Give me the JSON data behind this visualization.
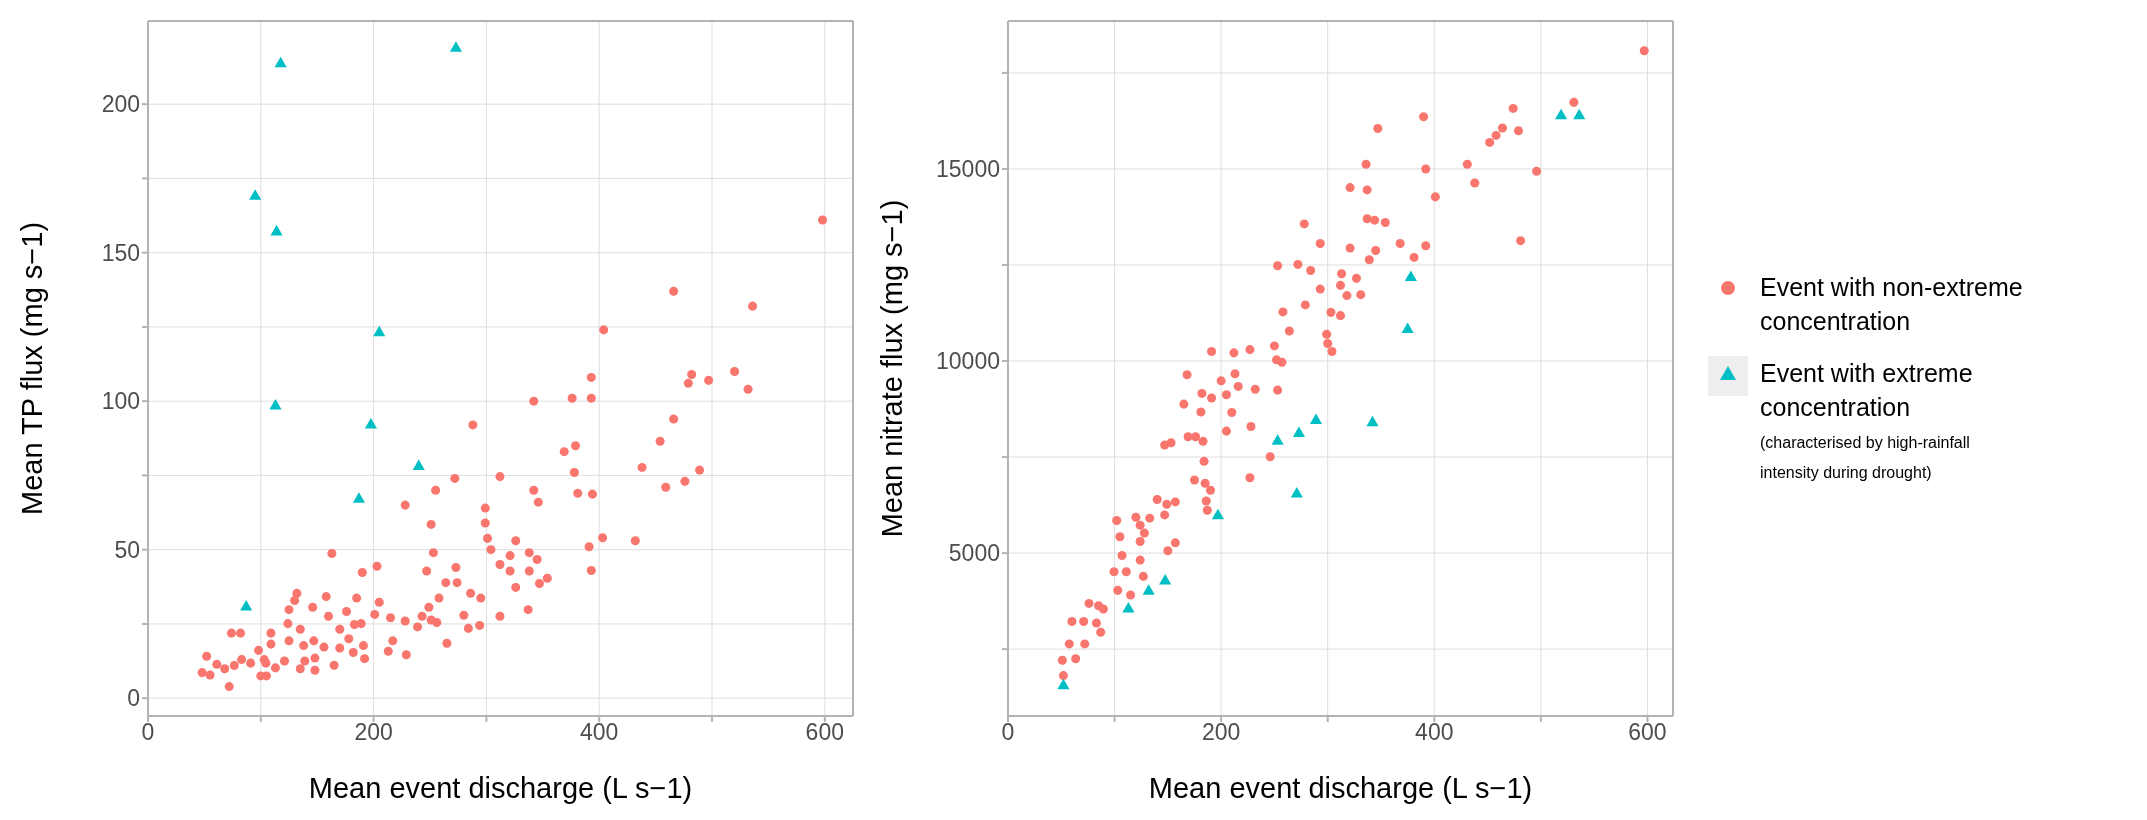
{
  "chart_data": [
    {
      "type": "scatter",
      "xlabel": "Mean event discharge (L s−1)",
      "ylabel": "Mean TP flux (mg s−1)",
      "xlim": [
        0,
        625
      ],
      "ylim": [
        -6,
        228
      ],
      "xticks": [
        0,
        {
          "value": 100,
          "label": null
        },
        200,
        {
          "value": 300,
          "label": null
        },
        400,
        {
          "value": 500,
          "label": null
        },
        600
      ],
      "yticks": [
        0,
        {
          "value": 25,
          "label": null
        },
        50,
        {
          "value": 75,
          "label": null
        },
        100,
        {
          "value": 125,
          "label": null
        },
        150,
        {
          "value": 175,
          "label": null
        },
        200
      ],
      "grid": true,
      "legend": false,
      "series": [
        {
          "color": "#f8766d",
          "marker": "circle",
          "x": [
            598,
            466,
            536,
            404,
            393,
            482,
            497,
            479,
            520,
            532,
            342,
            376,
            393,
            288,
            466,
            454,
            369,
            379,
            378,
            312,
            272,
            438,
            489,
            476,
            459,
            381,
            394,
            342,
            346,
            255,
            228,
            299,
            299,
            251,
            403,
            391,
            432,
            393,
            301,
            304,
            326,
            321,
            312,
            338,
            345,
            321,
            338,
            354,
            347,
            326,
            253,
            163,
            273,
            247,
            203,
            190,
            264,
            274,
            286,
            295,
            258,
            249,
            251,
            256,
            243,
            280,
            294,
            284,
            312,
            337,
            205,
            201,
            215,
            228,
            239,
            185,
            176,
            158,
            146,
            132,
            130,
            125,
            124,
            135,
            160,
            170,
            183,
            189,
            178,
            191,
            170,
            156,
            147,
            138,
            148,
            139,
            125,
            109,
            109,
            98,
            103,
            83,
            74,
            82,
            217,
            213,
            229,
            192,
            182,
            165,
            121,
            113,
            100,
            105,
            135,
            148,
            265,
            52,
            61,
            68,
            48,
            55,
            72,
            76.5,
            91,
            104.5
          ],
          "values": [
            161,
            137,
            132,
            124,
            108,
            109,
            107,
            106,
            110,
            104,
            100,
            101,
            101,
            92,
            94,
            86.5,
            83,
            85,
            76,
            74.6,
            74,
            77.7,
            76.8,
            73,
            71,
            69,
            68.7,
            70,
            66,
            70,
            65,
            64,
            59,
            58.5,
            54,
            51,
            53,
            43,
            53.8,
            50,
            53,
            48,
            45,
            49,
            46.7,
            42.8,
            42.8,
            40.4,
            38.6,
            37.3,
            49,
            48.7,
            44,
            42.8,
            44.4,
            42.3,
            38.9,
            38.9,
            35.3,
            33.7,
            33.7,
            30.6,
            26.3,
            25.5,
            27.6,
            27.9,
            24.5,
            23.5,
            27.6,
            29.8,
            32.3,
            28.2,
            27.1,
            26,
            24,
            33.7,
            29.2,
            34.2,
            30.6,
            35.3,
            32.9,
            29.8,
            25.1,
            23.2,
            27.6,
            23.2,
            24.8,
            25.1,
            20,
            17.7,
            16.9,
            17.2,
            19.3,
            17.7,
            13.5,
            12.5,
            19.3,
            21.9,
            18.2,
            16.1,
            13,
            13,
            21.9,
            21.9,
            19.3,
            15.8,
            14.6,
            13.3,
            15.4,
            11.1,
            12.5,
            10.2,
            7.5,
            7.5,
            9.9,
            9.4,
            18.5,
            14.1,
            11.4,
            9.9,
            8.6,
            7.8,
            3.9,
            11,
            11.8,
            11.8
          ]
        },
        {
          "color": "#00bfc4",
          "marker": "triangle",
          "x": [
            117.6,
            273,
            95,
            114,
            205,
            113,
            197.6,
            240,
            187,
            87
          ],
          "values": [
            213.6,
            218.8,
            169,
            157,
            123,
            98.4,
            92,
            78,
            67,
            30.7
          ]
        }
      ]
    },
    {
      "type": "scatter",
      "xlabel": "Mean event discharge (L s−1)",
      "ylabel": "Mean nitrate flux (mg s−1)",
      "xlim": [
        0,
        624
      ],
      "ylim": [
        760,
        18850
      ],
      "xticks": [
        0,
        {
          "value": 100,
          "label": null
        },
        200,
        {
          "value": 300,
          "label": null
        },
        400,
        {
          "value": 500,
          "label": null
        },
        600
      ],
      "yticks": [
        {
          "value": 2500,
          "label": null
        },
        5000,
        {
          "value": 7500,
          "label": null
        },
        10000,
        {
          "value": 12500,
          "label": null
        },
        15000,
        {
          "value": 17500,
          "label": null
        }
      ],
      "grid": true,
      "legend": "right",
      "annotations": [
        "(characterised by high-rainfall intensity during drought)"
      ],
      "series": [
        {
          "name": "Event with non-extreme concentration",
          "color": "#f8766d",
          "marker": "circle",
          "x": [
            597,
            531,
            474,
            479,
            464,
            458,
            452,
            390,
            347,
            496,
            431,
            438,
            392,
            401,
            336,
            321,
            337,
            278,
            337,
            344,
            354,
            293,
            321,
            345,
            339,
            368,
            392,
            381,
            481,
            253,
            272,
            284,
            293,
            313,
            327,
            312,
            318,
            331,
            258,
            279,
            264,
            303,
            312,
            299,
            300,
            304,
            191,
            212,
            227,
            250,
            252,
            257,
            168,
            200,
            213,
            216,
            205,
            232,
            253,
            182,
            191,
            165,
            181,
            210,
            228,
            205,
            147,
            153,
            169,
            176,
            183,
            184,
            246,
            227,
            175,
            185,
            190,
            186,
            187,
            140,
            149,
            157,
            147,
            133,
            124,
            157,
            150,
            102,
            120,
            105,
            124,
            128,
            107,
            124,
            99.5,
            111,
            103,
            115,
            127,
            76,
            85,
            89.5,
            60,
            71,
            83,
            87,
            57.5,
            72,
            51,
            63.5,
            52
          ],
          "values": [
            18077,
            16732,
            16575,
            15993,
            16066,
            15872,
            15690,
            16357,
            16053,
            14938,
            15120,
            14635,
            14999,
            14272,
            15120,
            14514,
            14454,
            13569,
            13702,
            13666,
            13605,
            13060,
            12939,
            12878,
            12636,
            13060,
            13000,
            12696,
            13133,
            12478,
            12514,
            12357,
            11872,
            12272,
            12151,
            11969,
            11703,
            11727,
            11278,
            11460,
            10781,
            11266,
            11181,
            10696,
            10454,
            10248,
            10248,
            10212,
            10296,
            10393,
            10030,
            9969,
            9642,
            9484,
            9666,
            9339,
            9121,
            9266,
            9242,
            9157,
            9036,
            8878,
            8672,
            8660,
            8297,
            8175,
            7812,
            7872,
            8030,
            8030,
            7909,
            7388,
            7509,
            6963,
            6903,
            6818,
            6636,
            6357,
            6115,
            6394,
            6273,
            6333,
            5994,
            5909,
            5727,
            5267,
            5061,
            5848,
            5933,
            5424,
            5303,
            5521,
            4939,
            4818,
            4515,
            4515,
            4030,
            3909,
            4394,
            3691,
            3630,
            3546,
            3218,
            3218,
            3182,
            2939,
            2636,
            2636,
            2212,
            2249,
            1812
          ]
        },
        {
          "name": "Event with extreme concentration",
          "color": "#00bfc4",
          "marker": "triangle",
          "x": [
            52,
            113,
            132,
            147.5,
            197,
            271,
            253,
            273,
            289,
            342,
            375,
            378,
            519,
            536
          ],
          "values": [
            1546,
            3546,
            4006,
            4273,
            5970,
            6539,
            7909,
            8115,
            8454,
            8394,
            10818,
            12175,
            16381,
            16381
          ]
        }
      ]
    }
  ]
}
